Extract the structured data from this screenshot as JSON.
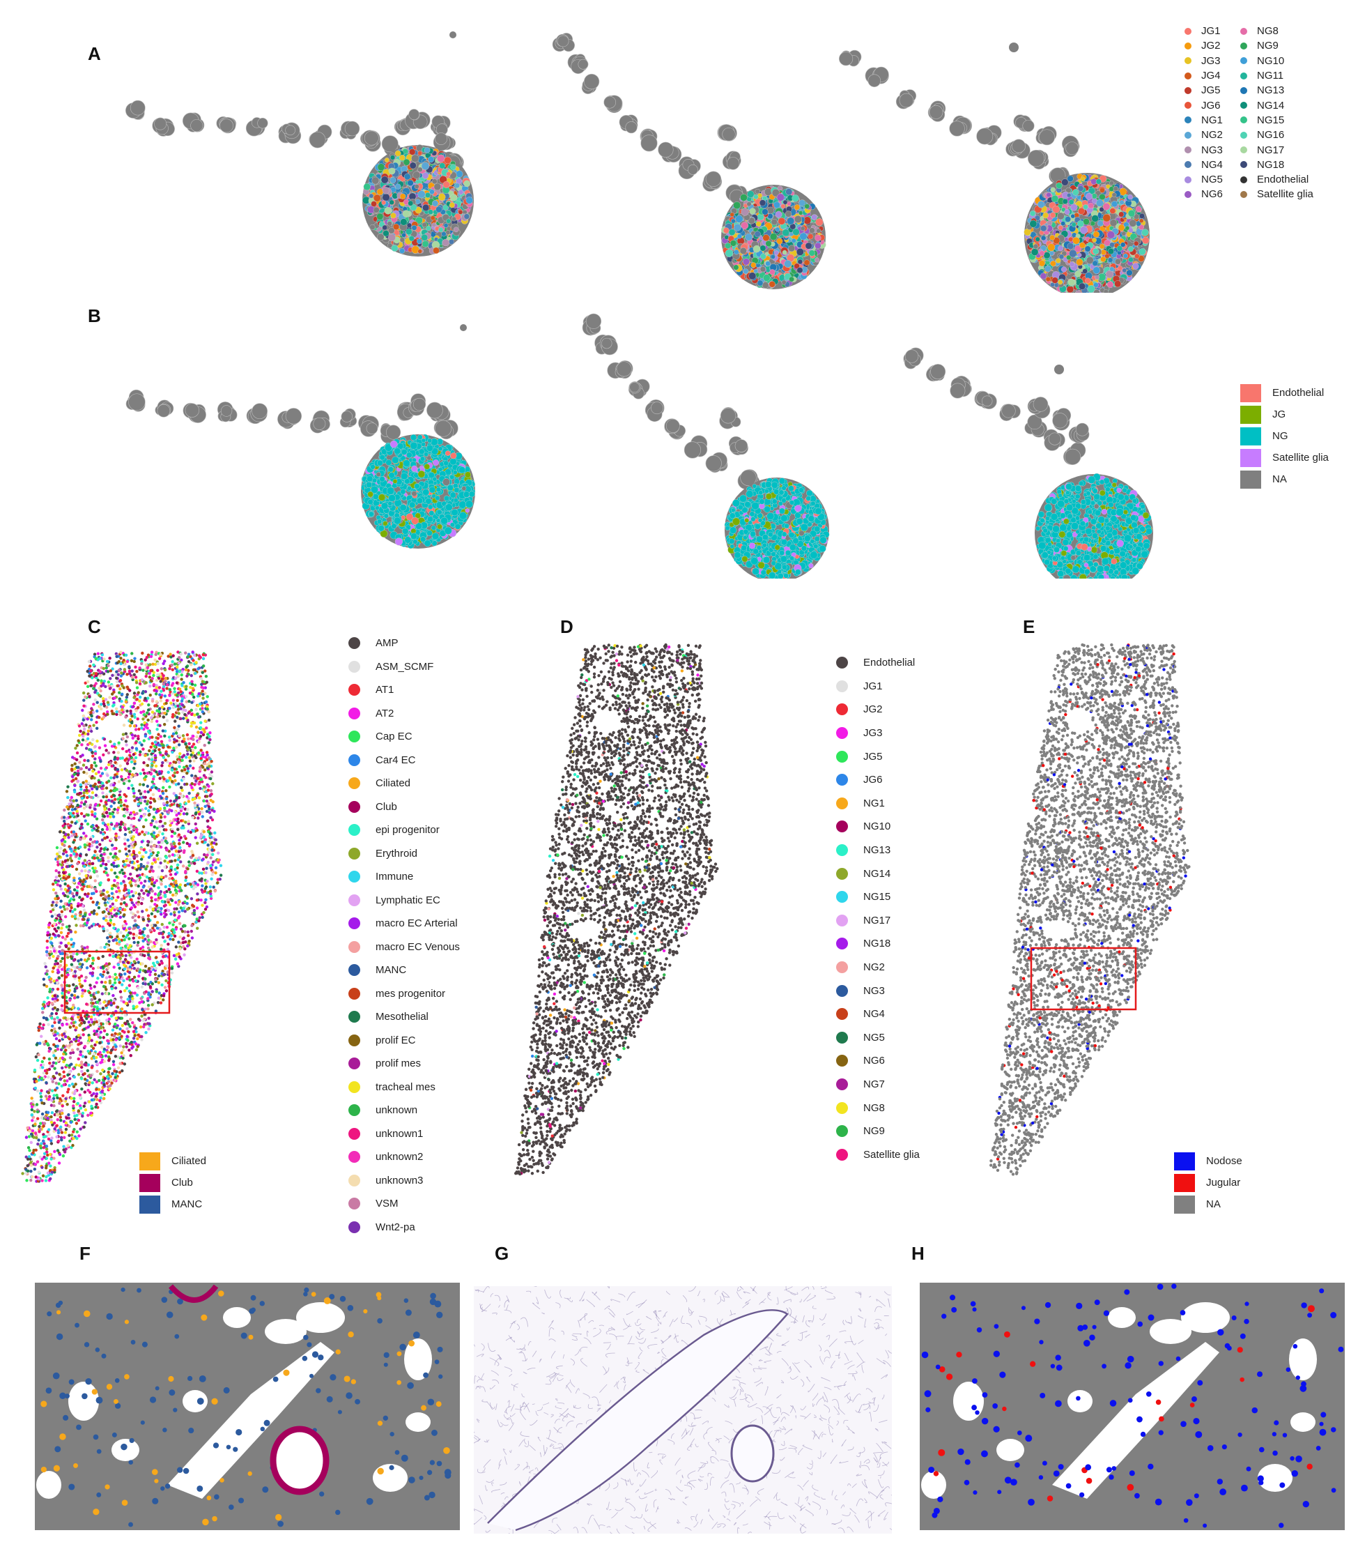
{
  "panels": {
    "A": "A",
    "B": "B",
    "C": "C",
    "D": "D",
    "E": "E",
    "F": "F",
    "G": "G",
    "H": "H"
  },
  "colors": {
    "gray": "#7f7f7f",
    "cyan_ng": "#00BFC4",
    "green_jg": "#7CAE00",
    "box": "#e41a1c",
    "d_dark": "#4d4546"
  },
  "legend_A": [
    {
      "label": "JG1",
      "color": "#F8766D"
    },
    {
      "label": "JG2",
      "color": "#F59B0E"
    },
    {
      "label": "JG3",
      "color": "#E7C324"
    },
    {
      "label": "JG4",
      "color": "#D35A1C"
    },
    {
      "label": "JG5",
      "color": "#C03A2B"
    },
    {
      "label": "JG6",
      "color": "#E8553A"
    },
    {
      "label": "NG1",
      "color": "#2B83BA"
    },
    {
      "label": "NG2",
      "color": "#5AA7D6"
    },
    {
      "label": "NG3",
      "color": "#B08FAE"
    },
    {
      "label": "NG4",
      "color": "#4C7BB0"
    },
    {
      "label": "NG5",
      "color": "#A88BE0"
    },
    {
      "label": "NG6",
      "color": "#9A5BC4"
    },
    {
      "label": "NG8",
      "color": "#E56DA8"
    },
    {
      "label": "NG9",
      "color": "#2FA65A"
    },
    {
      "label": "NG10",
      "color": "#3F9FD8"
    },
    {
      "label": "NG11",
      "color": "#22B59C"
    },
    {
      "label": "NG13",
      "color": "#1F77B4"
    },
    {
      "label": "NG14",
      "color": "#0E8F7A"
    },
    {
      "label": "NG15",
      "color": "#34C38A"
    },
    {
      "label": "NG16",
      "color": "#4FD3B4"
    },
    {
      "label": "NG17",
      "color": "#A8D8A0"
    },
    {
      "label": "NG18",
      "color": "#3C4A78"
    },
    {
      "label": "Endothelial",
      "color": "#333333"
    },
    {
      "label": "Satellite glia",
      "color": "#A0784A"
    }
  ],
  "legend_B": [
    {
      "label": "Endothelial",
      "color": "#F8766D"
    },
    {
      "label": "JG",
      "color": "#7CAE00"
    },
    {
      "label": "NG",
      "color": "#00BFC4"
    },
    {
      "label": "Satellite glia",
      "color": "#C77CFF"
    },
    {
      "label": "NA",
      "color": "#7F7F7F"
    }
  ],
  "legend_C": [
    {
      "label": "AMP",
      "color": "#4D4546"
    },
    {
      "label": "ASM_SCMF",
      "color": "#E0E0E0"
    },
    {
      "label": "AT1",
      "color": "#EE2A35"
    },
    {
      "label": "AT2",
      "color": "#F21BE6"
    },
    {
      "label": "Cap EC",
      "color": "#2EE65A"
    },
    {
      "label": "Car4 EC",
      "color": "#2D86E8"
    },
    {
      "label": "Ciliated",
      "color": "#F7A81B"
    },
    {
      "label": "Club",
      "color": "#A5005C"
    },
    {
      "label": "epi progenitor",
      "color": "#2BF0C8"
    },
    {
      "label": "Erythroid",
      "color": "#8EA82A"
    },
    {
      "label": "Immune",
      "color": "#2FD6EC"
    },
    {
      "label": "Lymphatic EC",
      "color": "#E2A2F2"
    },
    {
      "label": "macro EC Arterial",
      "color": "#A51BEA"
    },
    {
      "label": "macro EC Venous",
      "color": "#F4A0A0"
    },
    {
      "label": "MANC",
      "color": "#2C5A9E"
    },
    {
      "label": "mes progenitor",
      "color": "#C8401A"
    },
    {
      "label": "Mesothelial",
      "color": "#1F7A4E"
    },
    {
      "label": "prolif EC",
      "color": "#866412"
    },
    {
      "label": "prolif mes",
      "color": "#A81C98"
    },
    {
      "label": "tracheal mes",
      "color": "#F2E420"
    },
    {
      "label": "unknown",
      "color": "#2DB34A"
    },
    {
      "label": "unknown1",
      "color": "#EE1580"
    },
    {
      "label": "unknown2",
      "color": "#F22CB8"
    },
    {
      "label": "unknown3",
      "color": "#F4DDB0"
    },
    {
      "label": "VSM",
      "color": "#C97AA4"
    },
    {
      "label": "Wnt2-pa",
      "color": "#7A30B0"
    }
  ],
  "legend_C_small": [
    {
      "label": "Ciliated",
      "color": "#F7A81B"
    },
    {
      "label": "Club",
      "color": "#A5005C"
    },
    {
      "label": "MANC",
      "color": "#2C5A9E"
    }
  ],
  "legend_D": [
    {
      "label": "Endothelial",
      "color": "#4D4546"
    },
    {
      "label": "JG1",
      "color": "#E0E0E0"
    },
    {
      "label": "JG2",
      "color": "#EE2A35"
    },
    {
      "label": "JG3",
      "color": "#F21BE6"
    },
    {
      "label": "JG5",
      "color": "#2EE65A"
    },
    {
      "label": "JG6",
      "color": "#2D86E8"
    },
    {
      "label": "NG1",
      "color": "#F7A81B"
    },
    {
      "label": "NG10",
      "color": "#A5005C"
    },
    {
      "label": "NG13",
      "color": "#2BF0C8"
    },
    {
      "label": "NG14",
      "color": "#8EA82A"
    },
    {
      "label": "NG15",
      "color": "#2FD6EC"
    },
    {
      "label": "NG17",
      "color": "#E2A2F2"
    },
    {
      "label": "NG18",
      "color": "#A51BEA"
    },
    {
      "label": "NG2",
      "color": "#F4A0A0"
    },
    {
      "label": "NG3",
      "color": "#2C5A9E"
    },
    {
      "label": "NG4",
      "color": "#C8401A"
    },
    {
      "label": "NG5",
      "color": "#1F7A4E"
    },
    {
      "label": "NG6",
      "color": "#866412"
    },
    {
      "label": "NG7",
      "color": "#A81C98"
    },
    {
      "label": "NG8",
      "color": "#F2E420"
    },
    {
      "label": "NG9",
      "color": "#2DB34A"
    },
    {
      "label": "Satellite glia",
      "color": "#EE1580"
    }
  ],
  "legend_E": [
    {
      "label": "Nodose",
      "color": "#0A10F0"
    },
    {
      "label": "Jugular",
      "color": "#F01010"
    },
    {
      "label": "NA",
      "color": "#808080"
    }
  ]
}
